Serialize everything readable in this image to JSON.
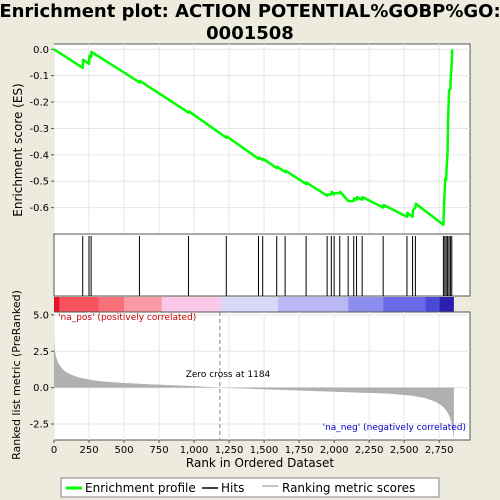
{
  "title_line1": "Enrichment plot: ACTION POTENTIAL%GOBP%GO:",
  "title_line2": "0001508",
  "colors": {
    "es_line": "#00ff00",
    "hit": "#000000",
    "metric": "#b0b0b0",
    "pos_label": "#cc0000",
    "neg_label": "#0000cc",
    "zero_line": "#808080",
    "background": "#ecebdd"
  },
  "legend": {
    "es": "Enrichment profile",
    "hits": "Hits",
    "metric": "Ranking metric scores"
  },
  "chart_data": {
    "type": "line",
    "title": "Enrichment plot: ACTION POTENTIAL%GOBP%GO:0001508",
    "xlabel": "Rank in Ordered Dataset",
    "xlim": [
      0,
      2970
    ],
    "x_ticks": [
      "0",
      "250",
      "500",
      "750",
      "1,000",
      "1,250",
      "1,500",
      "1,750",
      "2,000",
      "2,250",
      "2,500",
      "2,750"
    ],
    "x_tick_values": [
      0,
      250,
      500,
      750,
      1000,
      1250,
      1500,
      1750,
      2000,
      2250,
      2500,
      2750
    ],
    "es_panel": {
      "ylabel": "Enrichment score (ES)",
      "ylim": [
        -0.7,
        0.02
      ],
      "y_ticks": [
        "0.0",
        "-0.1",
        "-0.2",
        "-0.3",
        "-0.4",
        "-0.5",
        "-0.6"
      ],
      "y_tick_values": [
        0.0,
        -0.1,
        -0.2,
        -0.3,
        -0.4,
        -0.5,
        -0.6
      ],
      "series": [
        {
          "name": "Enrichment profile",
          "x": [
            0,
            205,
            208,
            250,
            253,
            265,
            268,
            610,
            613,
            960,
            963,
            1230,
            1233,
            1460,
            1463,
            1490,
            1493,
            1590,
            1593,
            1650,
            1653,
            1800,
            1803,
            1950,
            1953,
            1980,
            1983,
            2000,
            2003,
            2040,
            2043,
            2100,
            2140,
            2143,
            2160,
            2163,
            2200,
            2203,
            2350,
            2353,
            2520,
            2523,
            2560,
            2563,
            2580,
            2583,
            2780,
            2783,
            2785,
            2790,
            2793,
            2800,
            2803,
            2810,
            2813,
            2820,
            2823,
            2830,
            2833,
            2840,
            2843
          ],
          "y": [
            0.0,
            -0.07,
            -0.04,
            -0.055,
            -0.025,
            -0.03,
            -0.01,
            -0.125,
            -0.12,
            -0.24,
            -0.235,
            -0.335,
            -0.33,
            -0.415,
            -0.41,
            -0.42,
            -0.415,
            -0.45,
            -0.445,
            -0.465,
            -0.46,
            -0.51,
            -0.505,
            -0.555,
            -0.55,
            -0.55,
            -0.54,
            -0.55,
            -0.545,
            -0.545,
            -0.54,
            -0.575,
            -0.575,
            -0.565,
            -0.57,
            -0.56,
            -0.57,
            -0.56,
            -0.6,
            -0.59,
            -0.635,
            -0.62,
            -0.635,
            -0.61,
            -0.6,
            -0.585,
            -0.665,
            -0.62,
            -0.58,
            -0.53,
            -0.49,
            -0.495,
            -0.45,
            -0.39,
            -0.28,
            -0.16,
            -0.155,
            -0.15,
            -0.1,
            -0.05,
            0.0
          ]
        }
      ]
    },
    "hits_panel": {
      "positions": [
        205,
        250,
        265,
        610,
        960,
        1230,
        1460,
        1490,
        1590,
        1650,
        1800,
        1950,
        1980,
        2000,
        2040,
        2100,
        2140,
        2160,
        2200,
        2350,
        2520,
        2560,
        2580,
        2780,
        2790,
        2800,
        2810,
        2820,
        2830,
        2840
      ]
    },
    "metric_panel": {
      "ylabel": "Ranked list metric (PreRanked)",
      "ylim": [
        -3.6,
        5.2
      ],
      "y_ticks": [
        "5.0",
        "2.5",
        "0.0",
        "-2.5"
      ],
      "y_tick_values": [
        5.0,
        2.5,
        0.0,
        -2.5
      ],
      "n": 2855,
      "zero_cross": 1184,
      "curve_x": [
        0,
        5,
        15,
        30,
        50,
        80,
        120,
        170,
        250,
        350,
        500,
        700,
        900,
        1100,
        1184,
        1400,
        1700,
        2000,
        2200,
        2400,
        2550,
        2650,
        2720,
        2770,
        2800,
        2820,
        2835,
        2845,
        2855
      ],
      "curve_y": [
        3.4,
        2.6,
        2.1,
        1.7,
        1.4,
        1.1,
        0.9,
        0.72,
        0.55,
        0.42,
        0.32,
        0.22,
        0.15,
        0.05,
        0.0,
        -0.08,
        -0.18,
        -0.28,
        -0.35,
        -0.42,
        -0.55,
        -0.72,
        -0.95,
        -1.25,
        -1.55,
        -1.9,
        -2.3,
        -2.9,
        -3.5
      ],
      "pos_label": "'na_pos' (positively correlated)",
      "neg_label": "'na_neg' (negatively correlated)",
      "zero_cross_label": "Zero cross at 1184"
    },
    "colorbar": {
      "segments": [
        {
          "x0": 0,
          "x1": 40,
          "color": "#e8122a"
        },
        {
          "x0": 40,
          "x1": 320,
          "color": "#f9525f"
        },
        {
          "x0": 320,
          "x1": 500,
          "color": "#fb6f7a"
        },
        {
          "x0": 500,
          "x1": 770,
          "color": "#fb9aa2"
        },
        {
          "x0": 770,
          "x1": 1190,
          "color": "#fcc8ea"
        },
        {
          "x0": 1190,
          "x1": 1600,
          "color": "#d9d8f8"
        },
        {
          "x0": 1600,
          "x1": 2100,
          "color": "#b9b8f5"
        },
        {
          "x0": 2100,
          "x1": 2350,
          "color": "#8e8df0"
        },
        {
          "x0": 2350,
          "x1": 2650,
          "color": "#6a69e8"
        },
        {
          "x0": 2650,
          "x1": 2750,
          "color": "#4b4ad8"
        },
        {
          "x0": 2750,
          "x1": 2855,
          "color": "#2a1fb0"
        }
      ]
    }
  }
}
